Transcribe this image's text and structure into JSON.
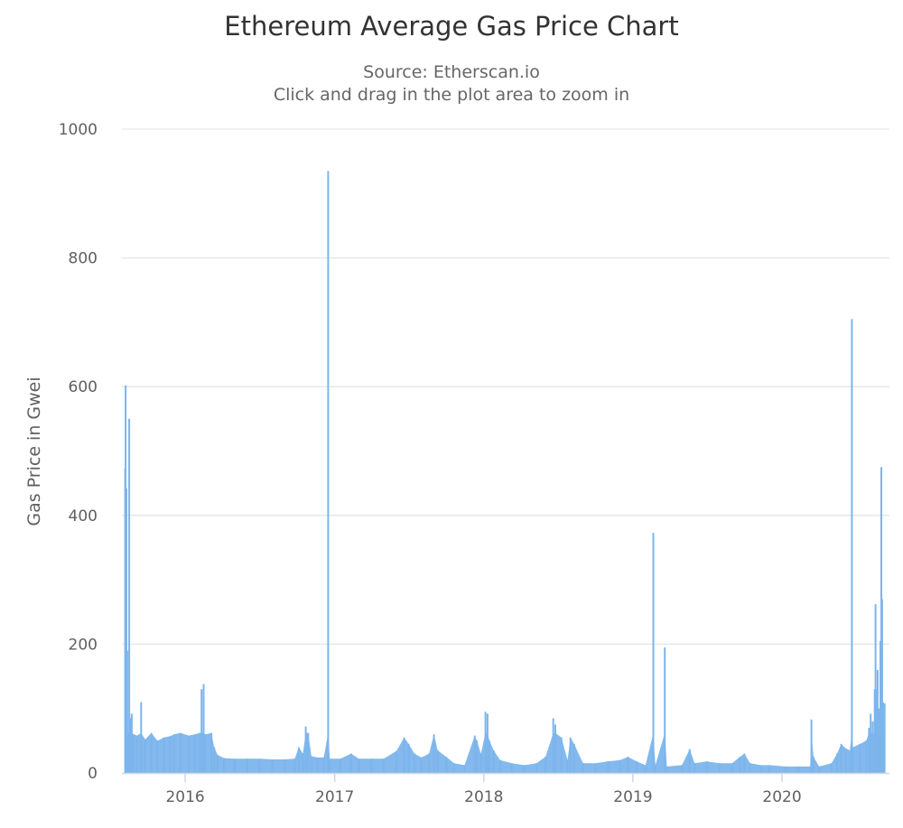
{
  "chart_data": {
    "type": "area",
    "title": "Ethereum Average Gas Price Chart",
    "subtitle_lines": [
      "Source: Etherscan.io",
      "Click and drag in the plot area to zoom in"
    ],
    "ylabel": "Gas Price in Gwei",
    "xlabel": "",
    "ylim": [
      0,
      1000
    ],
    "y_ticks": [
      0,
      200,
      400,
      600,
      800,
      1000
    ],
    "x_range": [
      "2015-07-30",
      "2020-09-20"
    ],
    "x_ticks": [
      {
        "label": "2016",
        "date": "2016-01-01"
      },
      {
        "label": "2017",
        "date": "2017-01-01"
      },
      {
        "label": "2018",
        "date": "2018-01-01"
      },
      {
        "label": "2019",
        "date": "2019-01-01"
      },
      {
        "label": "2020",
        "date": "2020-01-01"
      }
    ],
    "grid": true,
    "legend": "none",
    "color": "#7cb5ec",
    "series": [
      {
        "values": [
          [
            "2015-08-07",
            473
          ],
          [
            "2015-08-08",
            602
          ],
          [
            "2015-08-10",
            442
          ],
          [
            "2015-08-12",
            190
          ],
          [
            "2015-08-17",
            550
          ],
          [
            "2015-08-19",
            85
          ],
          [
            "2015-08-23",
            92
          ],
          [
            "2015-08-28",
            60
          ],
          [
            "2015-09-05",
            58
          ],
          [
            "2015-09-15",
            110
          ],
          [
            "2015-09-25",
            52
          ],
          [
            "2015-10-10",
            62
          ],
          [
            "2015-10-25",
            50
          ],
          [
            "2015-11-10",
            55
          ],
          [
            "2015-11-25",
            57
          ],
          [
            "2015-12-05",
            60
          ],
          [
            "2015-12-20",
            62
          ],
          [
            "2016-01-10",
            58
          ],
          [
            "2016-01-25",
            60
          ],
          [
            "2016-02-05",
            62
          ],
          [
            "2016-02-10",
            130
          ],
          [
            "2016-02-15",
            138
          ],
          [
            "2016-02-20",
            60
          ],
          [
            "2016-03-05",
            62
          ],
          [
            "2016-03-12",
            40
          ],
          [
            "2016-03-20",
            28
          ],
          [
            "2016-04-05",
            23
          ],
          [
            "2016-05-01",
            22
          ],
          [
            "2016-06-01",
            22
          ],
          [
            "2016-07-01",
            22
          ],
          [
            "2016-08-01",
            21
          ],
          [
            "2016-09-01",
            21
          ],
          [
            "2016-09-25",
            22
          ],
          [
            "2016-10-05",
            40
          ],
          [
            "2016-10-15",
            30
          ],
          [
            "2016-10-22",
            72
          ],
          [
            "2016-10-28",
            62
          ],
          [
            "2016-11-05",
            26
          ],
          [
            "2016-11-20",
            24
          ],
          [
            "2016-12-05",
            24
          ],
          [
            "2016-12-16",
            935
          ],
          [
            "2016-12-20",
            22
          ],
          [
            "2017-01-15",
            22
          ],
          [
            "2017-02-10",
            30
          ],
          [
            "2017-03-01",
            22
          ],
          [
            "2017-04-01",
            22
          ],
          [
            "2017-05-01",
            22
          ],
          [
            "2017-06-01",
            34
          ],
          [
            "2017-06-20",
            55
          ],
          [
            "2017-07-01",
            45
          ],
          [
            "2017-07-15",
            30
          ],
          [
            "2017-08-01",
            24
          ],
          [
            "2017-08-20",
            30
          ],
          [
            "2017-09-01",
            60
          ],
          [
            "2017-09-10",
            35
          ],
          [
            "2017-10-01",
            25
          ],
          [
            "2017-10-20",
            15
          ],
          [
            "2017-11-15",
            12
          ],
          [
            "2017-12-10",
            58
          ],
          [
            "2017-12-15",
            50
          ],
          [
            "2017-12-25",
            30
          ],
          [
            "2018-01-05",
            95
          ],
          [
            "2018-01-10",
            92
          ],
          [
            "2018-01-15",
            50
          ],
          [
            "2018-01-25",
            35
          ],
          [
            "2018-02-10",
            20
          ],
          [
            "2018-03-10",
            15
          ],
          [
            "2018-04-10",
            12
          ],
          [
            "2018-05-10",
            15
          ],
          [
            "2018-06-01",
            25
          ],
          [
            "2018-06-20",
            85
          ],
          [
            "2018-06-25",
            75
          ],
          [
            "2018-07-10",
            55
          ],
          [
            "2018-07-25",
            20
          ],
          [
            "2018-08-01",
            55
          ],
          [
            "2018-08-10",
            45
          ],
          [
            "2018-09-01",
            15
          ],
          [
            "2018-10-01",
            15
          ],
          [
            "2018-11-01",
            18
          ],
          [
            "2018-12-01",
            20
          ],
          [
            "2018-12-20",
            25
          ],
          [
            "2019-01-10",
            18
          ],
          [
            "2019-02-01",
            12
          ],
          [
            "2019-02-20",
            373
          ],
          [
            "2019-02-25",
            12
          ],
          [
            "2019-03-20",
            195
          ],
          [
            "2019-03-25",
            10
          ],
          [
            "2019-05-01",
            12
          ],
          [
            "2019-05-20",
            37
          ],
          [
            "2019-06-01",
            15
          ],
          [
            "2019-07-01",
            18
          ],
          [
            "2019-08-01",
            15
          ],
          [
            "2019-09-01",
            15
          ],
          [
            "2019-09-20",
            25
          ],
          [
            "2019-10-01",
            30
          ],
          [
            "2019-10-15",
            15
          ],
          [
            "2019-11-10",
            12
          ],
          [
            "2019-12-01",
            12
          ],
          [
            "2020-01-10",
            10
          ],
          [
            "2020-02-10",
            10
          ],
          [
            "2020-03-10",
            10
          ],
          [
            "2020-03-13",
            83
          ],
          [
            "2020-03-18",
            25
          ],
          [
            "2020-04-01",
            10
          ],
          [
            "2020-05-01",
            15
          ],
          [
            "2020-05-15",
            30
          ],
          [
            "2020-05-25",
            45
          ],
          [
            "2020-06-05",
            38
          ],
          [
            "2020-06-15",
            35
          ],
          [
            "2020-06-20",
            705
          ],
          [
            "2020-06-23",
            40
          ],
          [
            "2020-07-10",
            45
          ],
          [
            "2020-07-25",
            50
          ],
          [
            "2020-08-01",
            70
          ],
          [
            "2020-08-05",
            92
          ],
          [
            "2020-08-10",
            80
          ],
          [
            "2020-08-15",
            130
          ],
          [
            "2020-08-17",
            262
          ],
          [
            "2020-08-20",
            130
          ],
          [
            "2020-08-22",
            160
          ],
          [
            "2020-08-25",
            100
          ],
          [
            "2020-08-29",
            205
          ],
          [
            "2020-08-31",
            475
          ],
          [
            "2020-09-02",
            270
          ],
          [
            "2020-09-04",
            110
          ],
          [
            "2020-09-08",
            108
          ]
        ]
      }
    ]
  }
}
